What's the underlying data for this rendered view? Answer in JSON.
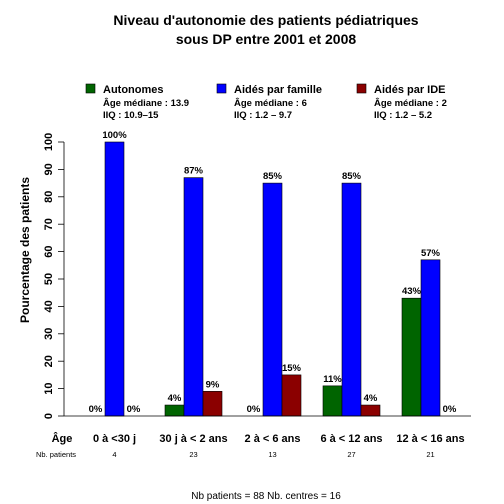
{
  "chart_data": {
    "type": "bar",
    "title_line1": "Niveau d'autonomie des patients pédiatriques",
    "title_line2": "sous DP entre 2001 et 2008",
    "ylabel": "Pourcentage des patients",
    "ylim": [
      0,
      100
    ],
    "yticks": [
      0,
      10,
      20,
      30,
      40,
      50,
      60,
      70,
      80,
      90,
      100
    ],
    "row_label_age": "Âge",
    "row_label_nb": "Nb. patients",
    "categories": [
      "0 à <30 j",
      "30 j à < 2 ans",
      "2 à < 6 ans",
      "6 à < 12 ans",
      "12 à < 16 ans"
    ],
    "nb_patients": [
      "4",
      "23",
      "13",
      "27",
      "21"
    ],
    "series": [
      {
        "name": "Autonomes",
        "color": "#006400",
        "values": [
          0,
          4,
          0,
          11,
          43
        ],
        "labels": [
          "0%",
          "4%",
          "0%",
          "11%",
          "43%"
        ],
        "stat1": "Âge médiane : 13.9",
        "stat2": "IIQ : 10.9–15"
      },
      {
        "name": "Aidés par famille",
        "color": "#0000ff",
        "values": [
          100,
          87,
          85,
          85,
          57
        ],
        "labels": [
          "100%",
          "87%",
          "85%",
          "85%",
          "57%"
        ],
        "stat1": "Âge médiane : 6",
        "stat2": "IIQ :  1.2 – 9.7"
      },
      {
        "name": "Aidés par IDE",
        "color": "#8b0000",
        "values": [
          0,
          9,
          15,
          4,
          0
        ],
        "labels": [
          "0%",
          "9%",
          "15%",
          "4%",
          "0%"
        ],
        "stat1": "Âge médiane : 2",
        "stat2": "IIQ :  1.2 – 5.2"
      }
    ],
    "footer": "Nb patients =  88     Nb. centres =  16"
  }
}
